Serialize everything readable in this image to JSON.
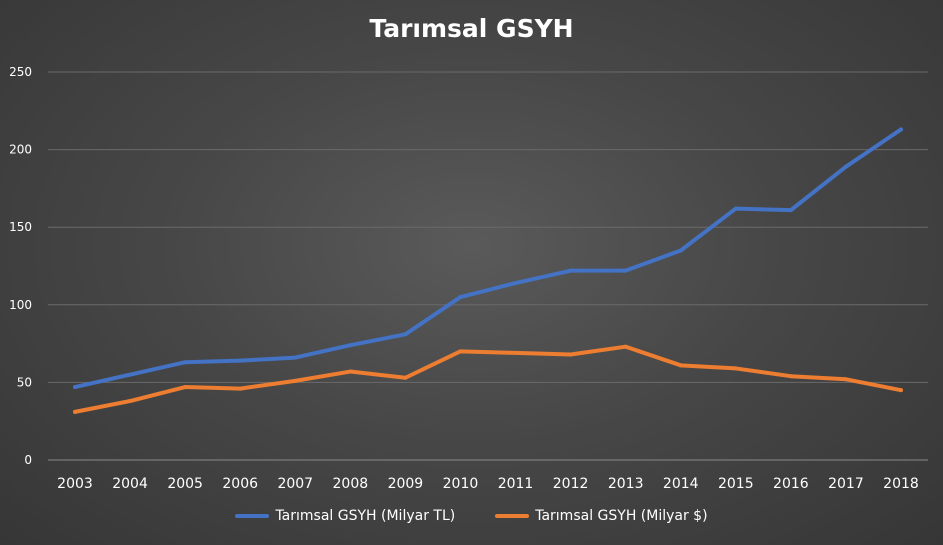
{
  "chart_data": {
    "type": "line",
    "title": "Tarımsal GSYH",
    "xlabel": "",
    "ylabel": "",
    "ylim": [
      0,
      250
    ],
    "y_ticks": [
      0,
      50,
      100,
      150,
      200,
      250
    ],
    "grid": true,
    "legend_position": "bottom",
    "categories": [
      "2003",
      "2004",
      "2005",
      "2006",
      "2007",
      "2008",
      "2009",
      "2010",
      "2011",
      "2012",
      "2013",
      "2014",
      "2015",
      "2016",
      "2017",
      "2018"
    ],
    "series": [
      {
        "name": "Tarımsal GSYH (Milyar TL)",
        "color": "#4472C4",
        "values": [
          47,
          55,
          63,
          64,
          66,
          74,
          81,
          105,
          114,
          122,
          122,
          135,
          162,
          161,
          189,
          213
        ]
      },
      {
        "name": "Tarımsal GSYH (Milyar $)",
        "color": "#ED7D31",
        "values": [
          31,
          38,
          47,
          46,
          51,
          57,
          53,
          70,
          69,
          68,
          73,
          61,
          59,
          54,
          52,
          45
        ]
      }
    ]
  }
}
